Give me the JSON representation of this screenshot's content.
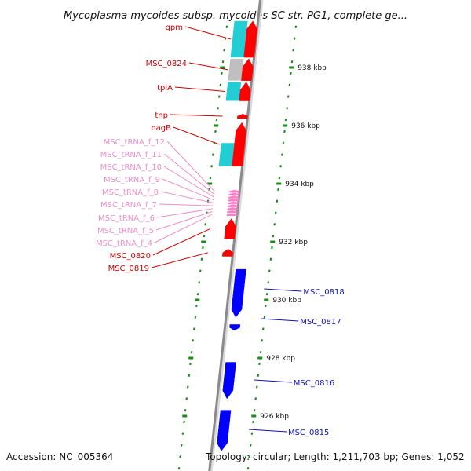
{
  "title": "Mycoplasma mycoides subsp. mycoides SC str. PG1, complete ge...",
  "footer": {
    "accession": "Accession: NC_005364",
    "topology": "Topology: circular; Length: 1,211,703 bp; Genes: 1,052"
  },
  "colors": {
    "reverse_gene": "#ff0000",
    "forward_gene": "#0000ff",
    "cds_box": "#22cdd3",
    "gray_box": "#bfbfbf",
    "trna": "#ff7fc6",
    "tick": "#1a8a1a",
    "label_red": "#cc0000",
    "label_pink": "#ee8fc8",
    "label_blue": "#1010b8",
    "backbone": "#8a8a8a"
  },
  "ticks": [
    {
      "kbp": 938,
      "label": "938 kbp"
    },
    {
      "kbp": 936,
      "label": "936 kbp"
    },
    {
      "kbp": 934,
      "label": "934 kbp"
    },
    {
      "kbp": 932,
      "label": "932 kbp"
    },
    {
      "kbp": 930,
      "label": "930 kbp"
    },
    {
      "kbp": 928,
      "label": "928 kbp"
    },
    {
      "kbp": 926,
      "label": "926 kbp"
    }
  ],
  "genes": [
    {
      "label": "gpm",
      "strand": "-",
      "start_kbp": 938.35,
      "end_kbp": 939.6,
      "type": "gene",
      "label_class": "red"
    },
    {
      "label": "MSC_0824",
      "strand": "-",
      "start_kbp": 937.55,
      "end_kbp": 938.3,
      "type": "gene",
      "label_class": "red"
    },
    {
      "label": "tpiA",
      "strand": "-",
      "start_kbp": 936.85,
      "end_kbp": 937.5,
      "type": "gene",
      "label_class": "red"
    },
    {
      "label": "tnp",
      "strand": "-",
      "start_kbp": 936.25,
      "end_kbp": 936.4,
      "type": "gene",
      "label_class": "red"
    },
    {
      "label": "nagB",
      "strand": "-",
      "start_kbp": 934.6,
      "end_kbp": 936.1,
      "type": "gene",
      "label_class": "red"
    },
    {
      "label": "MSC_tRNA_f_12",
      "strand": "-",
      "start_kbp": 933.7,
      "end_kbp": 933.78,
      "type": "trna",
      "label_class": "pink"
    },
    {
      "label": "MSC_tRNA_f_11",
      "strand": "-",
      "start_kbp": 933.6,
      "end_kbp": 933.68,
      "type": "trna",
      "label_class": "pink"
    },
    {
      "label": "MSC_tRNA_f_10",
      "strand": "-",
      "start_kbp": 933.5,
      "end_kbp": 933.58,
      "type": "trna",
      "label_class": "pink"
    },
    {
      "label": "MSC_tRNA_f_9",
      "strand": "-",
      "start_kbp": 933.4,
      "end_kbp": 933.48,
      "type": "trna",
      "label_class": "pink"
    },
    {
      "label": "MSC_tRNA_f_8",
      "strand": "-",
      "start_kbp": 933.3,
      "end_kbp": 933.38,
      "type": "trna",
      "label_class": "pink"
    },
    {
      "label": "MSC_tRNA_f_7",
      "strand": "-",
      "start_kbp": 933.2,
      "end_kbp": 933.28,
      "type": "trna",
      "label_class": "pink"
    },
    {
      "label": "MSC_tRNA_f_6",
      "strand": "-",
      "start_kbp": 933.1,
      "end_kbp": 933.18,
      "type": "trna",
      "label_class": "pink"
    },
    {
      "label": "MSC_tRNA_f_5",
      "strand": "-",
      "start_kbp": 933.0,
      "end_kbp": 933.08,
      "type": "trna",
      "label_class": "pink"
    },
    {
      "label": "MSC_tRNA_f_4",
      "strand": "-",
      "start_kbp": 932.9,
      "end_kbp": 932.98,
      "type": "trna",
      "label_class": "pink"
    },
    {
      "label": "MSC_0820",
      "strand": "-",
      "start_kbp": 932.1,
      "end_kbp": 932.8,
      "type": "gene",
      "label_class": "red"
    },
    {
      "label": "MSC_0819",
      "strand": "-",
      "start_kbp": 931.5,
      "end_kbp": 931.75,
      "type": "gene",
      "label_class": "red"
    },
    {
      "label": "MSC_0818",
      "strand": "+",
      "start_kbp": 929.4,
      "end_kbp": 931.05,
      "type": "gene",
      "label_class": "blue"
    },
    {
      "label": "MSC_0817",
      "strand": "+",
      "start_kbp": 928.95,
      "end_kbp": 929.15,
      "type": "gene",
      "label_class": "blue"
    },
    {
      "label": "MSC_0816",
      "strand": "+",
      "start_kbp": 926.6,
      "end_kbp": 927.85,
      "type": "gene",
      "label_class": "blue"
    },
    {
      "label": "MSC_0815",
      "strand": "+",
      "start_kbp": 924.8,
      "end_kbp": 926.2,
      "type": "gene",
      "label_class": "blue"
    }
  ],
  "boxes": [
    {
      "start_kbp": 938.35,
      "end_kbp": 939.6,
      "color": "cds_box"
    },
    {
      "start_kbp": 937.55,
      "end_kbp": 938.3,
      "color": "gray_box"
    },
    {
      "start_kbp": 936.85,
      "end_kbp": 937.5,
      "color": "cds_box"
    },
    {
      "start_kbp": 934.6,
      "end_kbp": 935.4,
      "color": "cds_box"
    }
  ]
}
